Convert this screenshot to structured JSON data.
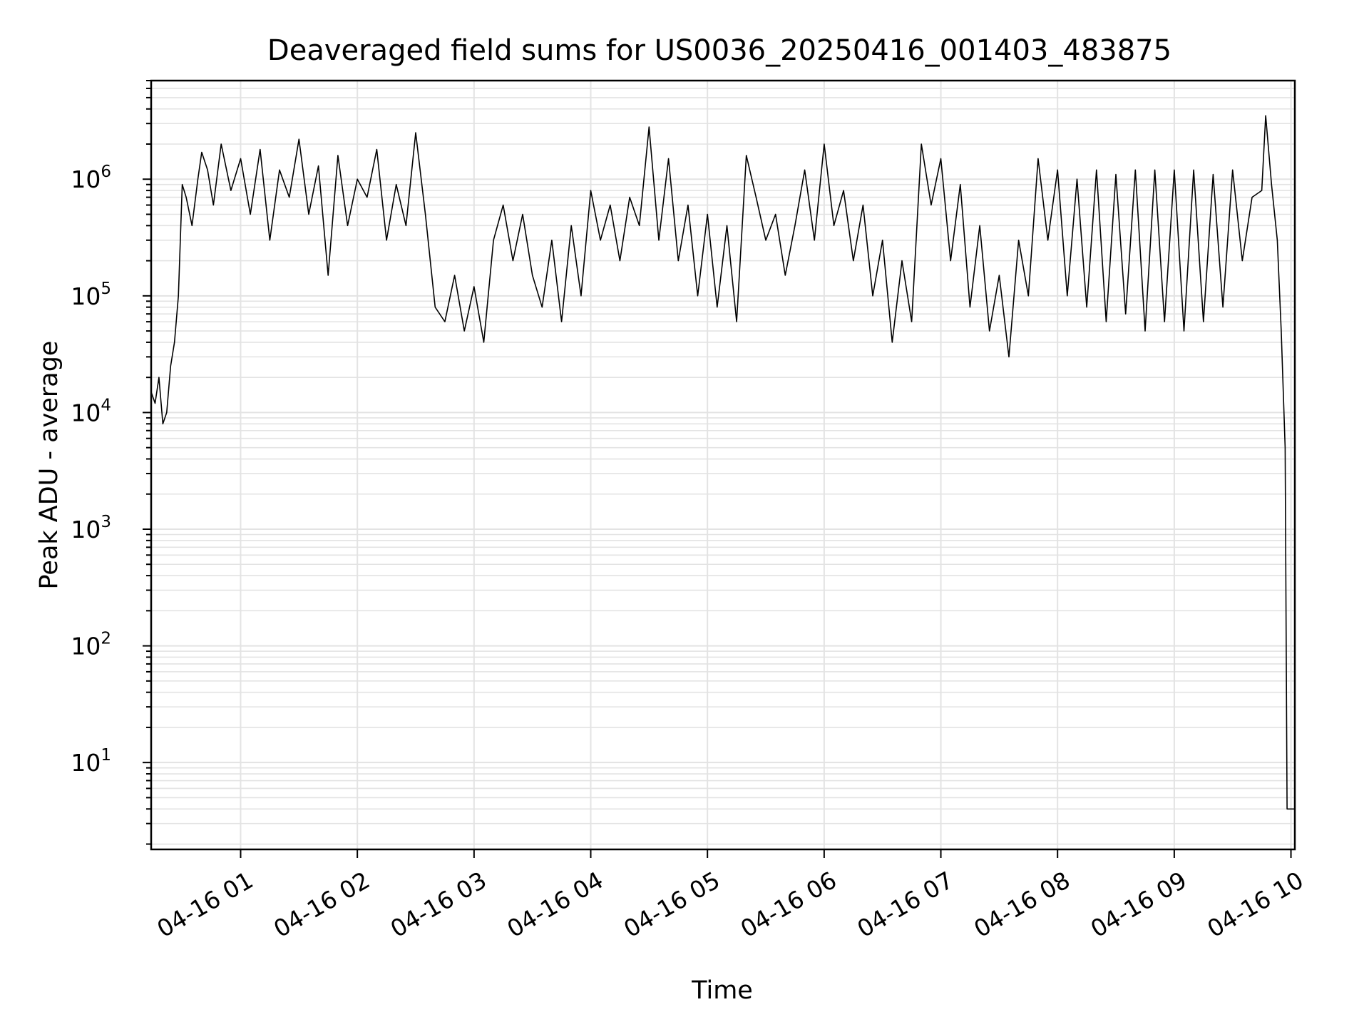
{
  "chart_data": {
    "type": "line",
    "title": "Deaveraged field sums for US0036_20250416_001403_483875",
    "xlabel": "Time",
    "ylabel": "Peak ADU - average",
    "yscale": "log",
    "ylim": [
      1.8,
      7000000
    ],
    "xlim": [
      "04-16 00:14",
      "04-16 10:02"
    ],
    "grid": true,
    "x_ticks": [
      "04-16 01",
      "04-16 02",
      "04-16 03",
      "04-16 04",
      "04-16 05",
      "04-16 06",
      "04-16 07",
      "04-16 08",
      "04-16 09",
      "04-16 10"
    ],
    "y_ticks": [
      {
        "base": "10",
        "exp": "1"
      },
      {
        "base": "10",
        "exp": "2"
      },
      {
        "base": "10",
        "exp": "3"
      },
      {
        "base": "10",
        "exp": "4"
      },
      {
        "base": "10",
        "exp": "5"
      },
      {
        "base": "10",
        "exp": "6"
      }
    ],
    "line_color": "#000000",
    "series": [
      {
        "x": [
          "00:14",
          "00:16",
          "00:18",
          "00:20",
          "00:22",
          "00:24",
          "00:26",
          "00:28",
          "00:30",
          "00:32",
          "00:35",
          "00:38",
          "00:40",
          "00:43",
          "00:46",
          "00:50",
          "00:55",
          "01:00",
          "01:05",
          "01:10",
          "01:15",
          "01:20",
          "01:25",
          "01:30",
          "01:35",
          "01:40",
          "01:45",
          "01:50",
          "01:55",
          "02:00",
          "02:05",
          "02:10",
          "02:15",
          "02:20",
          "02:25",
          "02:30",
          "02:35",
          "02:40",
          "02:45",
          "02:50",
          "02:55",
          "03:00",
          "03:05",
          "03:10",
          "03:15",
          "03:20",
          "03:25",
          "03:30",
          "03:35",
          "03:40",
          "03:45",
          "03:50",
          "03:55",
          "04:00",
          "04:05",
          "04:10",
          "04:15",
          "04:20",
          "04:25",
          "04:30",
          "04:35",
          "04:40",
          "04:45",
          "04:50",
          "04:55",
          "05:00",
          "05:05",
          "05:10",
          "05:15",
          "05:20",
          "05:25",
          "05:30",
          "05:35",
          "05:40",
          "05:45",
          "05:50",
          "05:55",
          "06:00",
          "06:05",
          "06:10",
          "06:15",
          "06:20",
          "06:25",
          "06:30",
          "06:35",
          "06:40",
          "06:45",
          "06:50",
          "06:55",
          "07:00",
          "07:05",
          "07:10",
          "07:15",
          "07:20",
          "07:25",
          "07:30",
          "07:35",
          "07:40",
          "07:45",
          "07:50",
          "07:55",
          "08:00",
          "08:05",
          "08:10",
          "08:15",
          "08:20",
          "08:25",
          "08:30",
          "08:35",
          "08:40",
          "08:45",
          "08:50",
          "08:55",
          "09:00",
          "09:05",
          "09:10",
          "09:15",
          "09:20",
          "09:25",
          "09:30",
          "09:35",
          "09:40",
          "09:45",
          "09:47",
          "09:50",
          "09:53",
          "09:55",
          "09:57",
          "09:58",
          "09:59",
          "10:00",
          "10:02"
        ],
        "y": [
          15000,
          12000,
          20000,
          8000,
          10000,
          25000,
          40000,
          100000,
          900000,
          700000,
          400000,
          1000000,
          1700000,
          1200000,
          600000,
          2000000,
          800000,
          1500000,
          500000,
          1800000,
          300000,
          1200000,
          700000,
          2200000,
          500000,
          1300000,
          150000,
          1600000,
          400000,
          1000000,
          700000,
          1800000,
          300000,
          900000,
          400000,
          2500000,
          500000,
          80000,
          60000,
          150000,
          50000,
          120000,
          40000,
          300000,
          600000,
          200000,
          500000,
          150000,
          80000,
          300000,
          60000,
          400000,
          100000,
          800000,
          300000,
          600000,
          200000,
          700000,
          400000,
          2800000,
          300000,
          1500000,
          200000,
          600000,
          100000,
          500000,
          80000,
          400000,
          60000,
          1600000,
          700000,
          300000,
          500000,
          150000,
          400000,
          1200000,
          300000,
          2000000,
          400000,
          800000,
          200000,
          600000,
          100000,
          300000,
          40000,
          200000,
          60000,
          2000000,
          600000,
          1500000,
          200000,
          900000,
          80000,
          400000,
          50000,
          150000,
          30000,
          300000,
          100000,
          1500000,
          300000,
          1200000,
          100000,
          1000000,
          80000,
          1200000,
          60000,
          1100000,
          70000,
          1200000,
          50000,
          1200000,
          60000,
          1200000,
          50000,
          1200000,
          60000,
          1100000,
          80000,
          1200000,
          200000,
          700000,
          800000,
          3500000,
          900000,
          300000,
          50000,
          5000,
          4,
          4,
          4,
          4
        ]
      }
    ]
  }
}
